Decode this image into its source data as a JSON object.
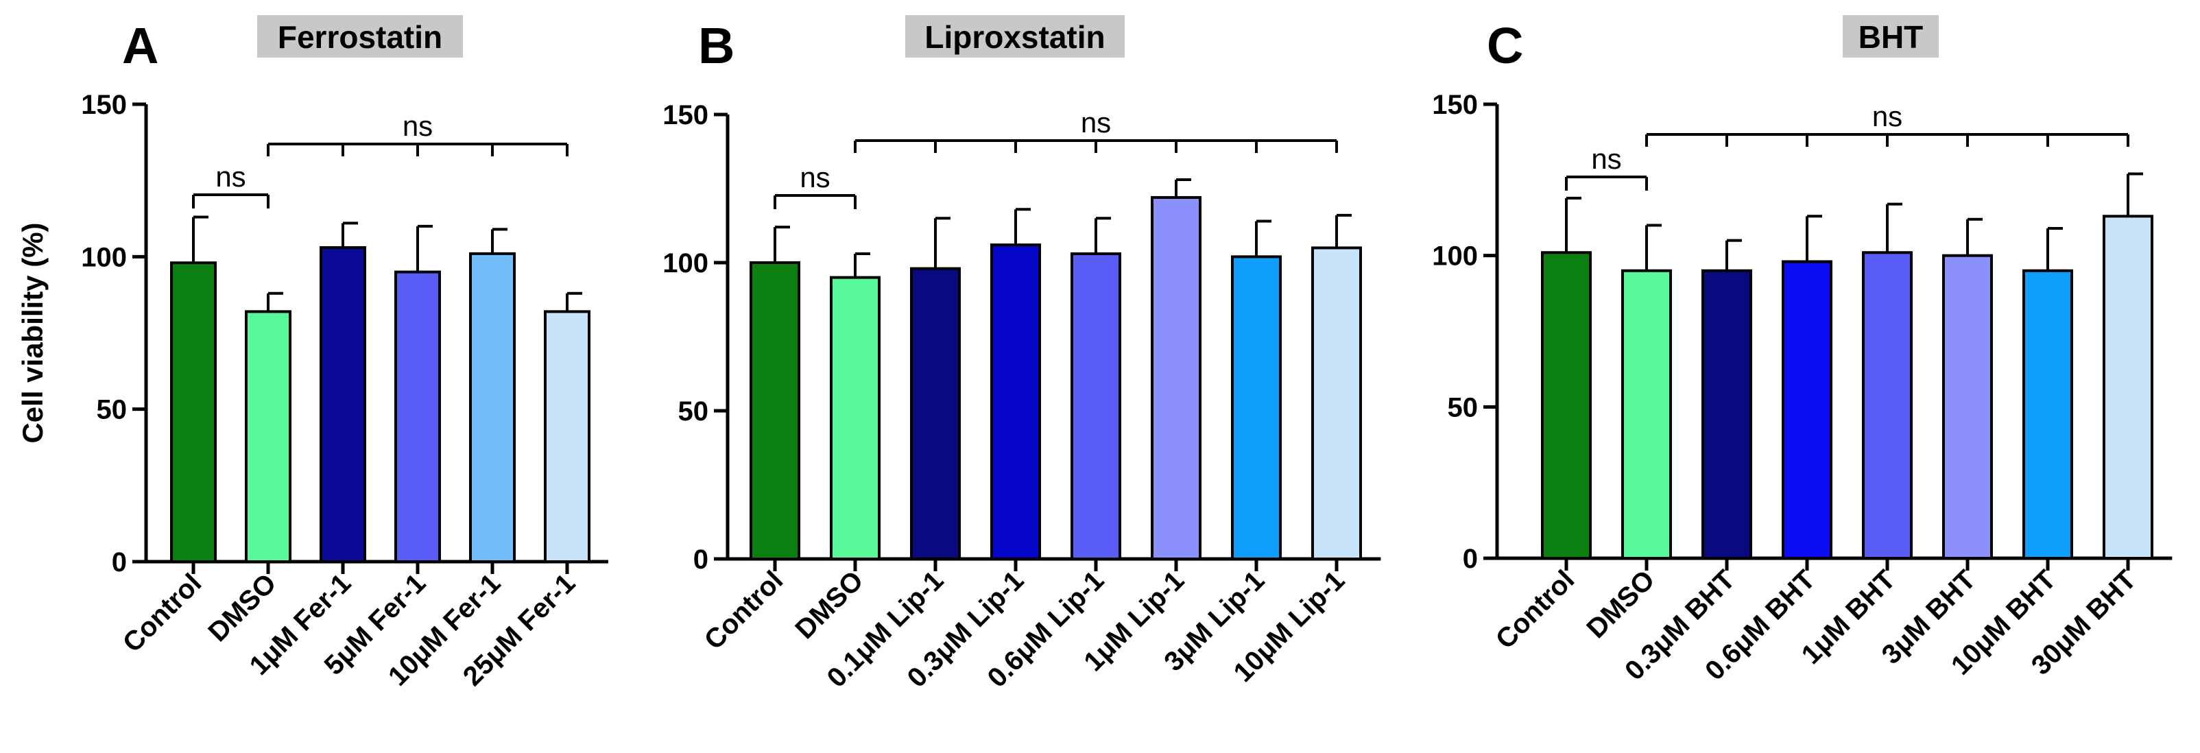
{
  "chart_data": [
    {
      "type": "bar",
      "panel": "A",
      "title": "Ferrostatin",
      "ylabel": "Cell viability (%)",
      "xlabel": "",
      "ylim": [
        0,
        150
      ],
      "yticks": [
        0,
        50,
        100,
        150
      ],
      "categories": [
        "Control",
        "DMSO",
        "1μM Fer-1",
        "5μM Fer-1",
        "10μM Fer-1",
        "25μM Fer-1"
      ],
      "values": [
        98,
        82,
        103,
        95,
        101,
        82
      ],
      "errors": [
        15,
        6,
        8,
        15,
        8,
        6
      ],
      "colors": [
        "#0b8010",
        "#57f79a",
        "#0a0a96",
        "#5a5cf6",
        "#74bdfb",
        "#c6e3f9"
      ],
      "annotations": [
        {
          "label": "ns",
          "type": "pair",
          "from": 0,
          "to": 1
        },
        {
          "label": "ns",
          "type": "multi",
          "from": 1,
          "to": 5
        }
      ]
    },
    {
      "type": "bar",
      "panel": "B",
      "title": "Liproxstatin",
      "ylabel": "",
      "xlabel": "",
      "ylim": [
        0,
        150
      ],
      "yticks": [
        0,
        50,
        100,
        150
      ],
      "categories": [
        "Control",
        "DMSO",
        "0.1μM Lip-1",
        "0.3μM Lip-1",
        "0.6μM Lip-1",
        "1μM Lip-1",
        "3μM Lip-1",
        "10μM Lip-1"
      ],
      "values": [
        100,
        95,
        98,
        106,
        103,
        122,
        102,
        105
      ],
      "errors": [
        12,
        8,
        17,
        12,
        12,
        6,
        12,
        11
      ],
      "colors": [
        "#0b8010",
        "#57f79a",
        "#0a0a80",
        "#0606c8",
        "#5a5cf6",
        "#8b90fa",
        "#0f9ffb",
        "#c6e3f9"
      ],
      "annotations": [
        {
          "label": "ns",
          "type": "pair",
          "from": 0,
          "to": 1
        },
        {
          "label": "ns",
          "type": "multi",
          "from": 1,
          "to": 7
        }
      ]
    },
    {
      "type": "bar",
      "panel": "C",
      "title": "BHT",
      "ylabel": "",
      "xlabel": "",
      "ylim": [
        0,
        150
      ],
      "yticks": [
        0,
        50,
        100,
        150
      ],
      "categories": [
        "Control",
        "DMSO",
        "0.3μM BHT",
        "0.6μM BHT",
        "1μM BHT",
        "3μM BHT",
        "10μM BHT",
        "30μM BHT"
      ],
      "values": [
        101,
        95,
        95,
        98,
        101,
        100,
        95,
        113
      ],
      "errors": [
        18,
        15,
        10,
        15,
        16,
        12,
        14,
        14
      ],
      "colors": [
        "#0b8010",
        "#57f79a",
        "#0a0a80",
        "#0c0cf5",
        "#5a5cf6",
        "#8b90fa",
        "#0f9ffb",
        "#c6e3f9"
      ],
      "annotations": [
        {
          "label": "ns",
          "type": "pair",
          "from": 0,
          "to": 1
        },
        {
          "label": "ns",
          "type": "multi",
          "from": 1,
          "to": 7
        }
      ]
    }
  ]
}
